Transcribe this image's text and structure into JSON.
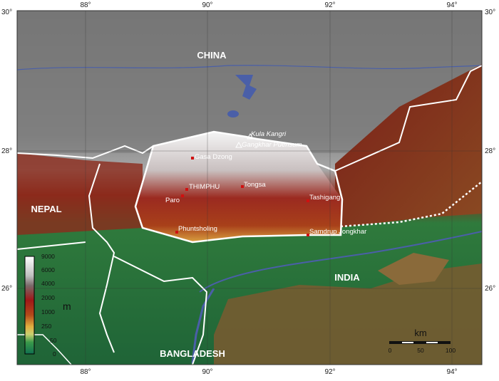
{
  "map": {
    "longitude_ticks": [
      "88°",
      "90°",
      "92°",
      "94°"
    ],
    "latitude_ticks": [
      "30°",
      "28°",
      "26°"
    ],
    "countries": {
      "china": "CHINA",
      "nepal": "NEPAL",
      "india": "INDIA",
      "bangladesh": "BANGLADESH"
    },
    "peaks": [
      "Kula Kangri",
      "Gangkhar Puensum"
    ],
    "cities": {
      "capital": "THIMPHU",
      "gasa": "Gasa Dzong",
      "paro": "Paro",
      "tongsa": "Tongsa",
      "tashigang": "Tashigang",
      "phuntsholing": "Phuntsholing",
      "samdrup": "Samdrup Jongkhar"
    },
    "legend": {
      "unit": "m",
      "levels": [
        "9000",
        "6000",
        "4000",
        "2000",
        "1000",
        "250",
        "50",
        "0"
      ]
    },
    "scale_bar": {
      "unit": "km",
      "labels": [
        "0",
        "50",
        "100"
      ]
    },
    "colors": {
      "lowland": "#1f6b3a",
      "highland": "#8a8a8a",
      "mid": "#9b2a1a",
      "border": "#ffffff",
      "water": "#4a5fa8"
    }
  }
}
